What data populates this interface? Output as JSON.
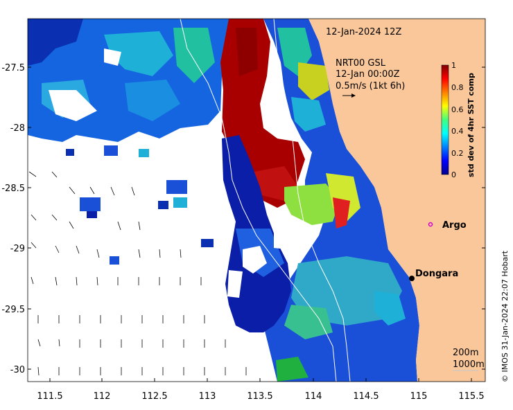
{
  "map": {
    "timestamp": "12-Jan-2024 12Z",
    "current_info": {
      "line1": "NRT00 GSL",
      "line2": "12-Jan 00:00Z",
      "line3": "0.5m/s (1kt 6h)"
    },
    "x_ticks": [
      "111.5",
      "112",
      "112.5",
      "113",
      "113.5",
      "114",
      "114.5",
      "115",
      "115.5"
    ],
    "y_ticks": [
      "-27.5",
      "-28",
      "-28.5",
      "-29",
      "-29.5",
      "-30"
    ],
    "colorbar": {
      "label": "std dev of 4hr SST comp",
      "ticks": [
        "1",
        "0.8",
        "0.6",
        "0.4",
        "0.2",
        "0"
      ]
    },
    "places": {
      "argo": "Argo",
      "dongara": "Dongara"
    },
    "contours": {
      "c200": "200m",
      "c1000": "1000m"
    },
    "credit": "© IMOS 31-Jan-2024 22:07 Hobart",
    "colors": {
      "land": "#f9c79a",
      "argo_marker": "#cc00cc",
      "town_marker": "#000000"
    }
  }
}
